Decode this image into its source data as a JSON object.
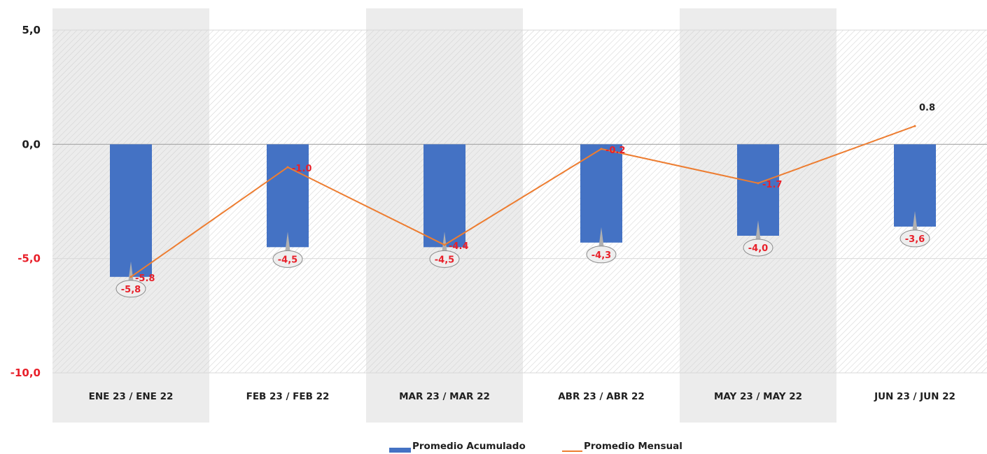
{
  "chart_data": {
    "type": "bar",
    "categories": [
      "ENE 23 / ENE 22",
      "FEB 23 / FEB 22",
      "MAR 23 / MAR 22",
      "ABR 23 / ABR 22",
      "MAY 23 / MAY 22",
      "JUN 23 / JUN 22"
    ],
    "series": [
      {
        "name": "Promedio Acumulado",
        "type": "bar",
        "values": [
          -5.8,
          -4.5,
          -4.5,
          -4.3,
          -4.0,
          -3.6
        ],
        "labels": [
          "-5,8",
          "-4,5",
          "-4,5",
          "-4,3",
          "-4,0",
          "-3,6"
        ],
        "color": "#4472c4"
      },
      {
        "name": "Promedio Mensual",
        "type": "line",
        "values": [
          -5.8,
          -1.0,
          -4.4,
          -0.2,
          -1.7,
          0.8
        ],
        "labels": [
          "-5.8",
          "-1.0",
          "-4.4",
          "-0.2",
          "-1.7",
          "0.8"
        ],
        "color": "#ed7d31"
      }
    ],
    "ylim": [
      -10,
      5
    ],
    "yticks": [
      5,
      0,
      -5,
      -10
    ],
    "ytick_labels": [
      "5,0",
      "0,0",
      "-5,0",
      "-10,0"
    ],
    "negative_color": "#e8202a",
    "positive_color": "#1f1f1f",
    "grid": true,
    "legend": "bottom-center"
  }
}
